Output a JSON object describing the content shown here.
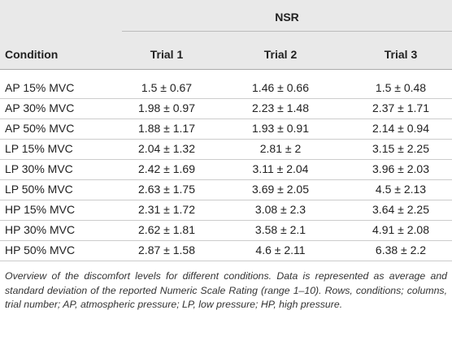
{
  "table": {
    "group_header": "NSR",
    "header": [
      "Condition",
      "Trial 1",
      "Trial 2",
      "Trial 3"
    ],
    "rows": [
      [
        "AP 15% MVC",
        "1.5 ± 0.67",
        "1.46 ± 0.66",
        "1.5 ± 0.48"
      ],
      [
        "AP 30% MVC",
        "1.98 ± 0.97",
        "2.23 ± 1.48",
        "2.37 ± 1.71"
      ],
      [
        "AP 50% MVC",
        "1.88 ± 1.17",
        "1.93 ± 0.91",
        "2.14 ± 0.94"
      ],
      [
        "LP 15% MVC",
        "2.04 ± 1.32",
        "2.81 ± 2",
        "3.15 ± 2.25"
      ],
      [
        "LP 30% MVC",
        "2.42 ± 1.69",
        "3.11 ± 2.04",
        "3.96 ± 2.03"
      ],
      [
        "LP 50% MVC",
        "2.63 ± 1.75",
        "3.69 ± 2.05",
        "4.5 ± 2.13"
      ],
      [
        "HP 15% MVC",
        "2.31 ± 1.72",
        "3.08 ± 2.3",
        "3.64 ± 2.25"
      ],
      [
        "HP 30% MVC",
        "2.62 ± 1.81",
        "3.58 ± 2.1",
        "4.91 ± 2.08"
      ],
      [
        "HP 50% MVC",
        "2.87 ± 1.58",
        "4.6 ± 2.11",
        "6.38 ± 2.2"
      ]
    ]
  },
  "caption": "Overview of the discomfort levels for different conditions. Data is represented as average and standard deviation of the reported Numeric Scale Rating (range 1–10). Rows, conditions; columns, trial number; AP, atmospheric pressure; LP, low pressure; HP, high pressure."
}
